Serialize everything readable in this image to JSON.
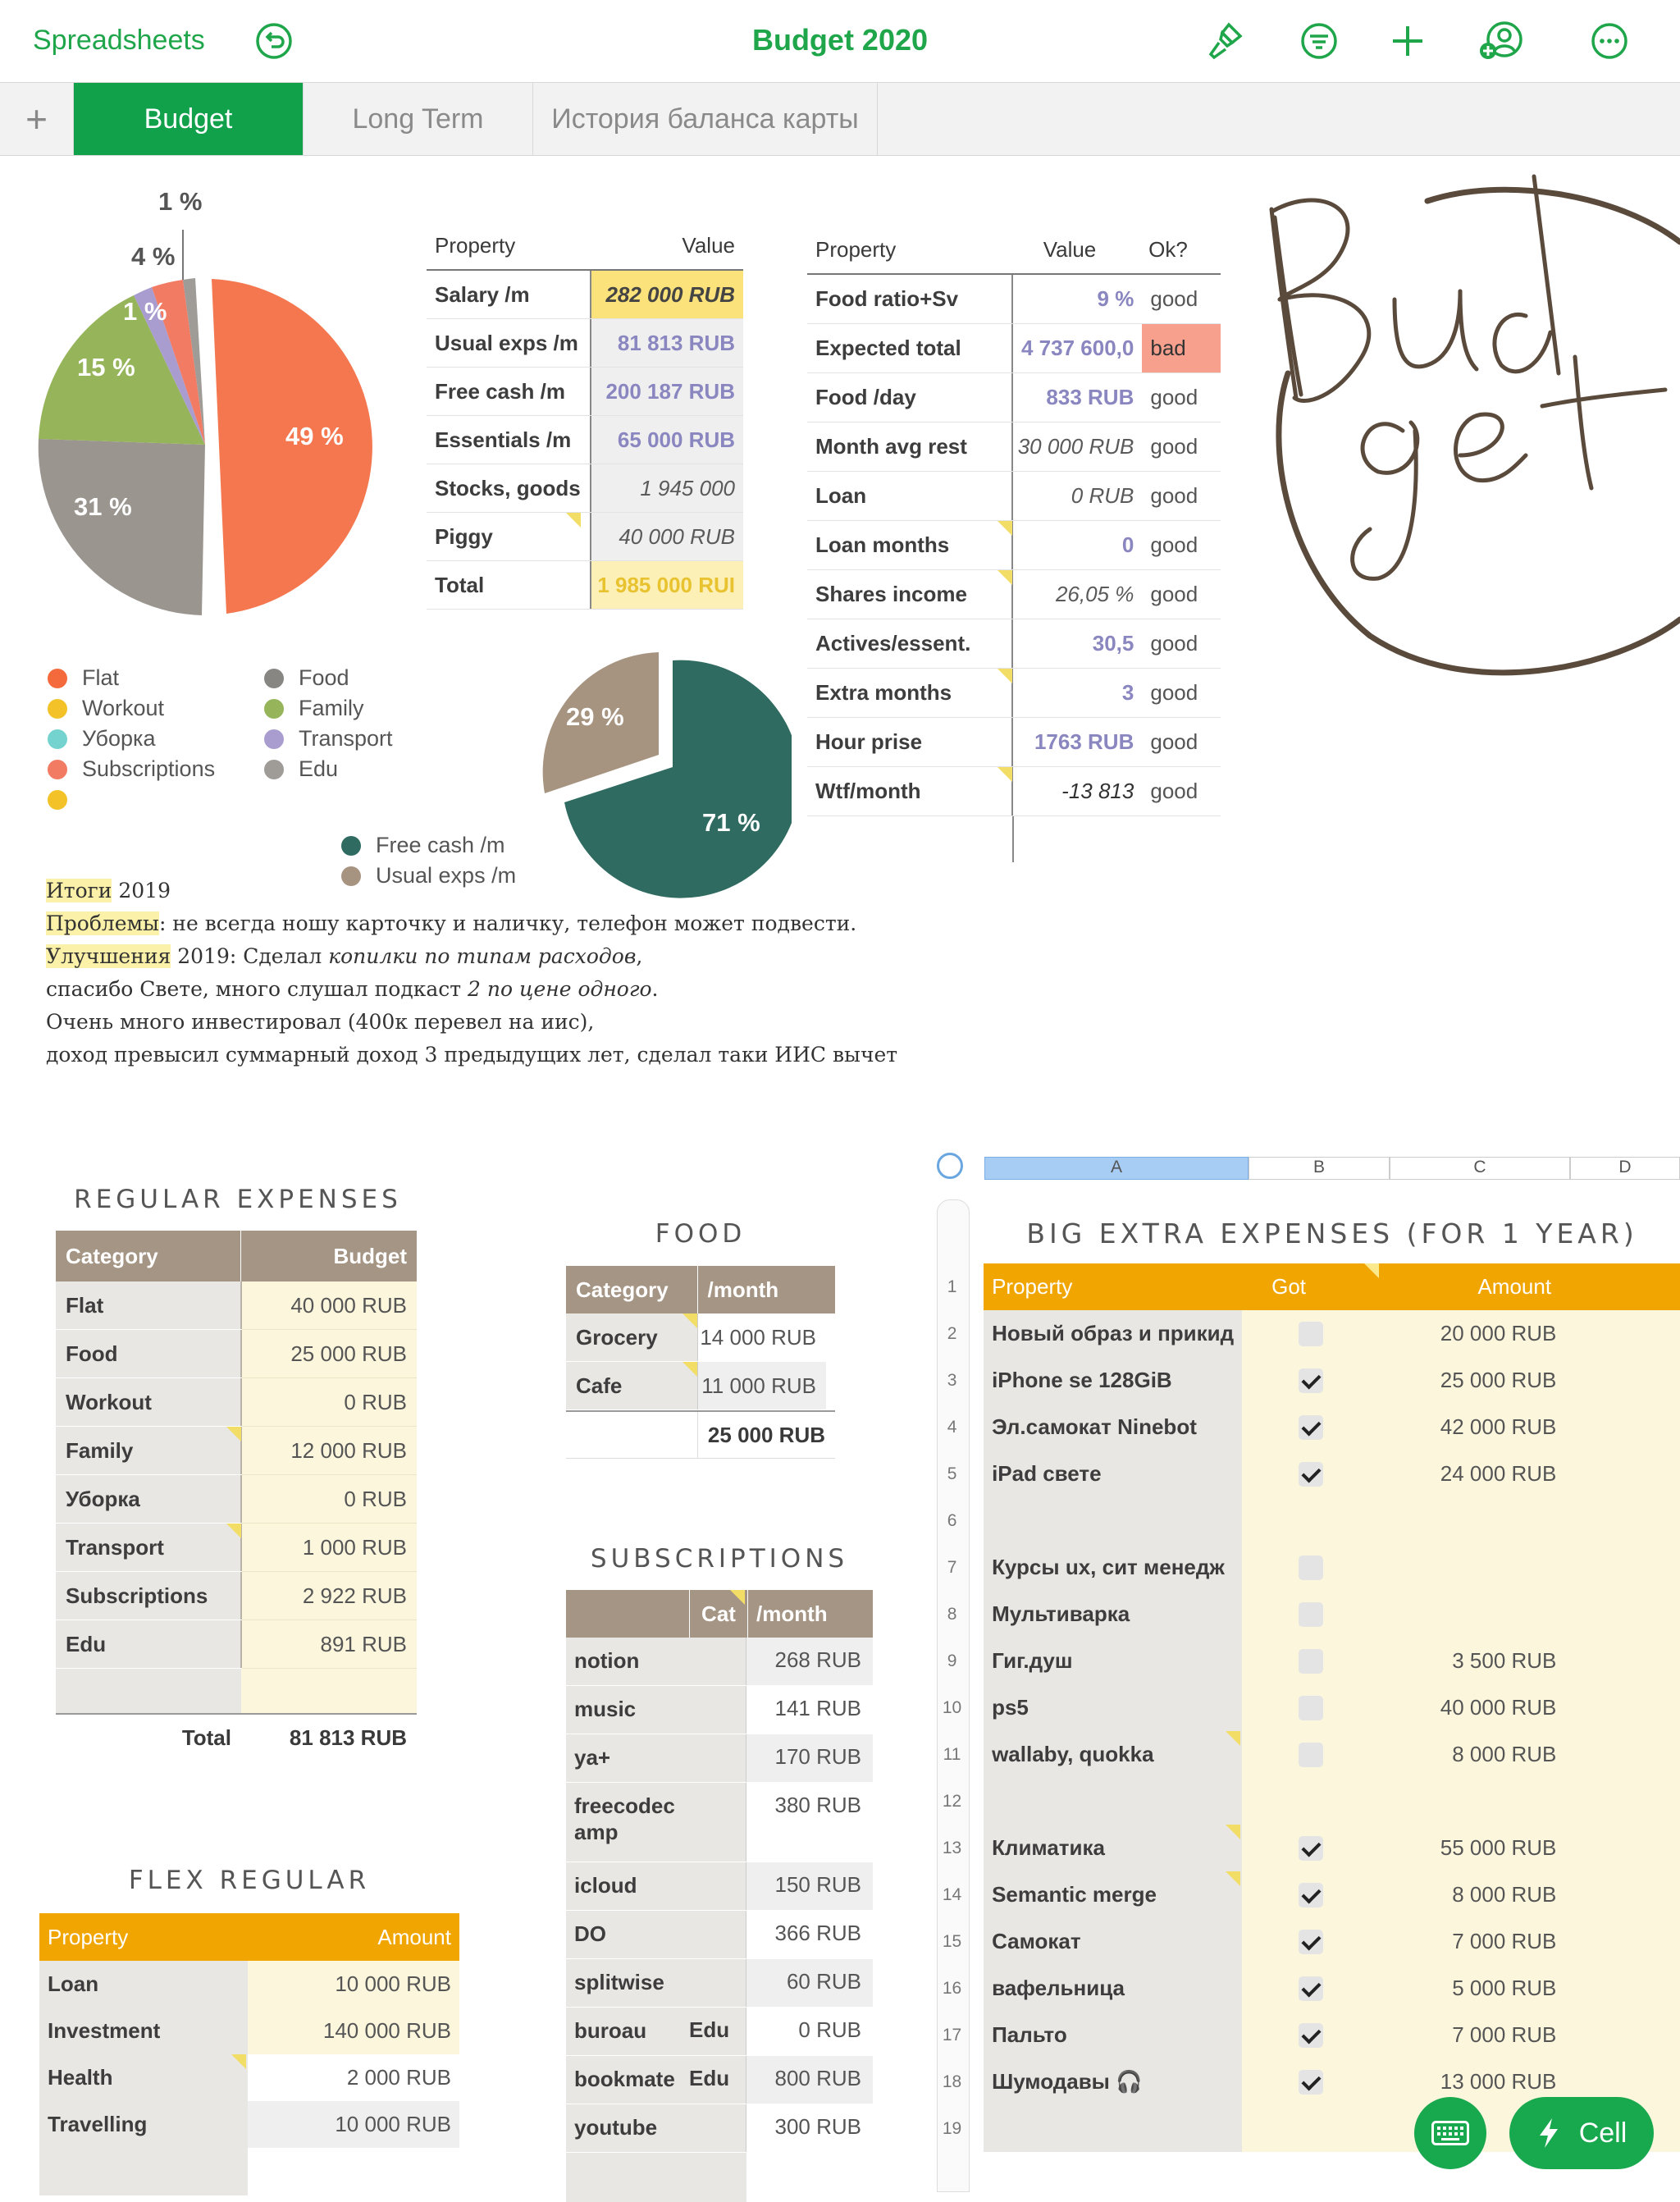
{
  "topbar": {
    "back_label": "Spreadsheets",
    "title": "Budget 2020",
    "icons": [
      "undo-icon",
      "brush-icon",
      "filter-icon",
      "add-icon",
      "collaborate-icon",
      "more-icon"
    ]
  },
  "tabs": [
    {
      "label": "Budget"
    },
    {
      "label": "Long Term"
    },
    {
      "label": "История баланса карты"
    }
  ],
  "pie1": {
    "labels": [
      "1 %",
      "4 %",
      "1 %",
      "15 %",
      "31 %",
      "49 %"
    ],
    "legend_left": [
      "Flat",
      "Workout",
      "Уборка",
      "Subscriptions",
      ""
    ],
    "legend_right": [
      "Food",
      "Family",
      "Transport",
      "Edu"
    ],
    "legend_left_colors": [
      "#f46a3c",
      "#f3c229",
      "#74d3cf",
      "#f27b63",
      "#f3c229"
    ],
    "legend_right_colors": [
      "#888683",
      "#96b45a",
      "#a99ccf",
      "#9f9c98"
    ]
  },
  "pie2": {
    "labels": [
      "29 %",
      "71 %"
    ],
    "legend": [
      "Free cash /m",
      "Usual exps /m"
    ],
    "colors": [
      "#2f6b61",
      "#a69480"
    ]
  },
  "prop_table": {
    "headers": [
      "Property",
      "Value"
    ],
    "rows": [
      {
        "property": "Salary /m",
        "value": "282 000 RUB"
      },
      {
        "property": "Usual exps /m",
        "value": "81 813 RUB"
      },
      {
        "property": "Free cash /m",
        "value": "200 187 RUB"
      },
      {
        "property": "Essentials /m",
        "value": "65 000 RUB"
      },
      {
        "property": "Stocks, goods",
        "value": "1 945 000 RUB"
      },
      {
        "property": "Piggy",
        "value": "40 000 RUB"
      },
      {
        "property": "Total",
        "value": "1 985 000 RUI"
      }
    ]
  },
  "ratio_table": {
    "headers": [
      "Property",
      "Value",
      "Ok?"
    ],
    "rows": [
      {
        "property": "Food ratio+Sv",
        "value": "9 %",
        "ok": "good"
      },
      {
        "property": "Expected total",
        "value": "4 737 600,0",
        "ok": "bad"
      },
      {
        "property": "Food /day",
        "value": "833 RUB",
        "ok": "good"
      },
      {
        "property": "Month avg rest",
        "value": "30 000 RUB",
        "ok": "good"
      },
      {
        "property": "Loan",
        "value": "0 RUB",
        "ok": "good"
      },
      {
        "property": "Loan months",
        "value": "0",
        "ok": "good"
      },
      {
        "property": "Shares income",
        "value": "26,05 %",
        "ok": "good"
      },
      {
        "property": "Actives/essent.",
        "value": "30,5",
        "ok": "good"
      },
      {
        "property": "Extra months",
        "value": "3",
        "ok": "good"
      },
      {
        "property": "Hour prise",
        "value": "1763 RUB",
        "ok": "good"
      },
      {
        "property": "Wtf/month",
        "value": "-13 813 RUB",
        "ok": "good"
      }
    ]
  },
  "notes": {
    "l1_hl": "Итоги",
    "l1_rest": " 2019",
    "l2_hl": "Проблемы",
    "l2_rest": ": не всегда ношу карточку и наличку, телефон может подвести.",
    "l3_hl": "Улучшения",
    "l3_a": " 2019: Сделал ",
    "l3_b": "копилки по типам расходов",
    "l3_c": ",",
    "l4_a": "спасибо Свете, много слушал подкаст ",
    "l4_b": "2 по цене одного",
    "l4_c": ".",
    "l5": "Очень много инвестировал (400к перевел на иис),",
    "l6": "доход превысил суммарный доход 3 предыдущих лет,  сделал таки ИИС вычет"
  },
  "regular": {
    "title": "REGULAR EXPENSES",
    "headers": [
      "Category",
      "Budget"
    ],
    "rows": [
      {
        "c": "Flat",
        "v": "40 000 RUB"
      },
      {
        "c": "Food",
        "v": "25 000 RUB"
      },
      {
        "c": "Workout",
        "v": "0 RUB"
      },
      {
        "c": "Family",
        "v": "12 000 RUB"
      },
      {
        "c": "Уборка",
        "v": "0 RUB"
      },
      {
        "c": "Transport",
        "v": "1 000 RUB"
      },
      {
        "c": "Subscriptions",
        "v": "2 922 RUB"
      },
      {
        "c": "Edu",
        "v": "891 RUB"
      }
    ],
    "total_label": "Total",
    "total_value": "81 813 RUB"
  },
  "food": {
    "title": "FOOD",
    "headers": [
      "Category",
      "/month"
    ],
    "rows": [
      {
        "c": "Grocery",
        "v": "14 000 RUB"
      },
      {
        "c": "Cafe",
        "v": "11 000 RUB"
      }
    ],
    "total": "25 000 RUB"
  },
  "subs": {
    "title": "SUBSCRIPTIONS",
    "headers": [
      "",
      "Cat",
      "/month"
    ],
    "rows": [
      {
        "n": "notion",
        "cat": "",
        "v": "268 RUB"
      },
      {
        "n": "music",
        "cat": "",
        "v": "141 RUB"
      },
      {
        "n": "ya+",
        "cat": "",
        "v": "170 RUB"
      },
      {
        "n": "freecodec amp",
        "cat": "",
        "v": "380 RUB"
      },
      {
        "n": "icloud",
        "cat": "",
        "v": "150 RUB"
      },
      {
        "n": "DO",
        "cat": "",
        "v": "366 RUB"
      },
      {
        "n": "splitwise",
        "cat": "",
        "v": "60 RUB"
      },
      {
        "n": "buroau",
        "cat": "Edu",
        "v": "0 RUB"
      },
      {
        "n": "bookmate",
        "cat": "Edu",
        "v": "800 RUB"
      },
      {
        "n": "youtube",
        "cat": "",
        "v": "300 RUB"
      }
    ]
  },
  "flex": {
    "title": "FLEX REGULAR",
    "headers": [
      "Property",
      "Amount"
    ],
    "rows": [
      {
        "p": "Loan",
        "v": "10 000 RUB"
      },
      {
        "p": "Investment",
        "v": "140 000 RUB"
      },
      {
        "p": "Health",
        "v": "2 000 RUB"
      },
      {
        "p": "Travelling",
        "v": "10 000 RUB"
      }
    ]
  },
  "big": {
    "columns": [
      "A",
      "B",
      "C",
      "D"
    ],
    "title": "BIG EXTRA EXPENSES (FOR 1 YEAR)",
    "headers": [
      "Property",
      "Got",
      "Amount"
    ],
    "rows": [
      {
        "n": "1",
        "p": "",
        "got": null,
        "v": ""
      },
      {
        "n": "2",
        "p": "Новый образ и прикид",
        "got": false,
        "v": "20 000 RUB"
      },
      {
        "n": "3",
        "p": "iPhone se 128GiB",
        "got": true,
        "v": "25 000 RUB"
      },
      {
        "n": "4",
        "p": "Эл.самокат Ninebot",
        "got": true,
        "v": "42 000 RUB"
      },
      {
        "n": "5",
        "p": "iPad свете",
        "got": true,
        "v": "24 000 RUB"
      },
      {
        "n": "6",
        "p": "",
        "got": null,
        "v": ""
      },
      {
        "n": "7",
        "p": "Курсы ux, сит менедж",
        "got": false,
        "v": ""
      },
      {
        "n": "8",
        "p": "Мультиварка",
        "got": false,
        "v": ""
      },
      {
        "n": "9",
        "p": "Гиг.душ",
        "got": false,
        "v": "3 500 RUB"
      },
      {
        "n": "10",
        "p": "ps5",
        "got": false,
        "v": "40 000 RUB"
      },
      {
        "n": "11",
        "p": "wallaby, quokka",
        "got": false,
        "v": "8 000 RUB"
      },
      {
        "n": "12",
        "p": "",
        "got": null,
        "v": ""
      },
      {
        "n": "13",
        "p": "Климатика",
        "got": true,
        "v": "55 000 RUB"
      },
      {
        "n": "14",
        "p": "Semantic merge",
        "got": true,
        "v": "8 000 RUB"
      },
      {
        "n": "15",
        "p": "Самокат",
        "got": true,
        "v": "7 000 RUB"
      },
      {
        "n": "16",
        "p": "вафельница",
        "got": true,
        "v": "5 000 RUB"
      },
      {
        "n": "17",
        "p": "Пальто",
        "got": true,
        "v": "7 000 RUB"
      },
      {
        "n": "18",
        "p": "Шумодавы 🎧",
        "got": true,
        "v": "13 000 RUB"
      },
      {
        "n": "19",
        "p": "",
        "got": null,
        "v": ""
      }
    ]
  },
  "bottom": {
    "cell_label": "Cell"
  }
}
